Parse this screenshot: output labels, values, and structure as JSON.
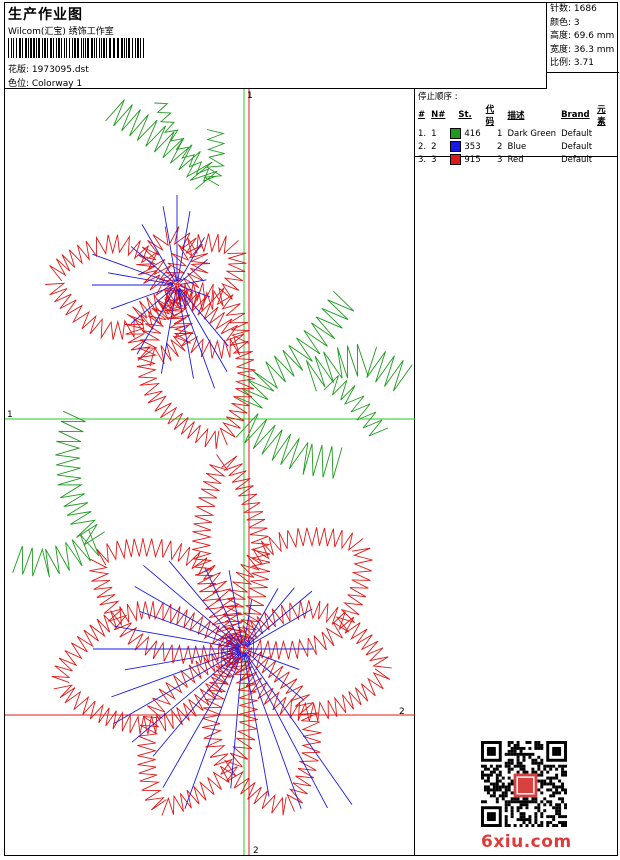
{
  "header": {
    "title": "生产作业图",
    "studio": "Wilcom(汇宝) 绣饰工作室",
    "design_label": "花版: 1973095.dst",
    "colorway_label": "色位: Colorway 1"
  },
  "stats": [
    "针数: 1686",
    "颜色: 3",
    "高度: 69.6 mm",
    "宽度: 36.3 mm",
    "比例: 3.71"
  ],
  "stop_sequence": {
    "label": "停止顺序 :",
    "columns": [
      "#",
      "N#",
      "St.",
      "代码",
      "描述",
      "Brand",
      "元素"
    ],
    "rows": [
      {
        "idx": "1.",
        "n": "1",
        "color": "#1f9a1f",
        "st": "416",
        "code": "1",
        "desc": "Dark Green",
        "brand": "Default"
      },
      {
        "idx": "2.",
        "n": "2",
        "color": "#1a1ae6",
        "st": "353",
        "code": "2",
        "desc": "Blue",
        "brand": "Default"
      },
      {
        "idx": "3.",
        "n": "3",
        "color": "#e01818",
        "st": "915",
        "code": "3",
        "desc": "Red",
        "brand": "Default"
      }
    ]
  },
  "axis_labels": {
    "v_top": "1",
    "h_left": "1",
    "h_right": "2",
    "v_bottom": "2"
  },
  "colors": {
    "green": "#1f9a1f",
    "blue": "#1a1ae6",
    "red": "#e01818",
    "axis_green": "#22cc22",
    "axis_red": "#e01818"
  },
  "watermark": "6xiu.com"
}
